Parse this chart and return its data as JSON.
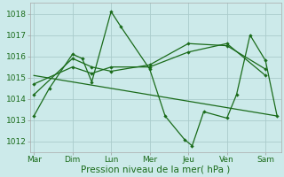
{
  "xlabel": "Pression niveau de la mer( hPa )",
  "background_color": "#cceaea",
  "grid_color": "#aacccc",
  "line_color": "#1a6b1a",
  "ylim": [
    1011.5,
    1018.5
  ],
  "xlim": [
    -0.1,
    6.4
  ],
  "x_labels": [
    "Mar",
    "Dim",
    "Lun",
    "Mer",
    "Jeu",
    "Ven",
    "Sam"
  ],
  "x_positions": [
    0,
    1,
    2,
    3,
    4,
    5,
    6
  ],
  "series1": {
    "x": [
      0,
      0.4,
      1.0,
      1.25,
      1.5,
      2.0,
      2.25,
      3.0,
      3.4,
      3.9,
      4.1,
      4.4,
      5.0,
      5.25,
      5.6,
      6.0,
      6.3
    ],
    "y": [
      1013.2,
      1014.5,
      1016.1,
      1015.9,
      1014.8,
      1018.1,
      1017.4,
      1015.4,
      1013.2,
      1012.1,
      1011.8,
      1013.4,
      1013.1,
      1014.2,
      1017.0,
      1015.8,
      1013.2
    ]
  },
  "series2": {
    "x": [
      0,
      1.0,
      1.5,
      2.0,
      3.0,
      4.0,
      5.0,
      6.0
    ],
    "y": [
      1014.7,
      1015.5,
      1015.2,
      1015.5,
      1015.5,
      1016.2,
      1016.6,
      1015.1
    ]
  },
  "series3": {
    "x": [
      0,
      1.0,
      1.5,
      2.0,
      3.0,
      4.0,
      5.0,
      6.0
    ],
    "y": [
      1014.2,
      1015.9,
      1015.5,
      1015.3,
      1015.6,
      1016.6,
      1016.5,
      1015.4
    ]
  },
  "series4": {
    "x": [
      0,
      6.3
    ],
    "y": [
      1015.1,
      1013.2
    ]
  },
  "yticks": [
    1012,
    1013,
    1014,
    1015,
    1016,
    1017,
    1018
  ],
  "tick_fontsize": 6.5,
  "xlabel_fontsize": 7.5
}
